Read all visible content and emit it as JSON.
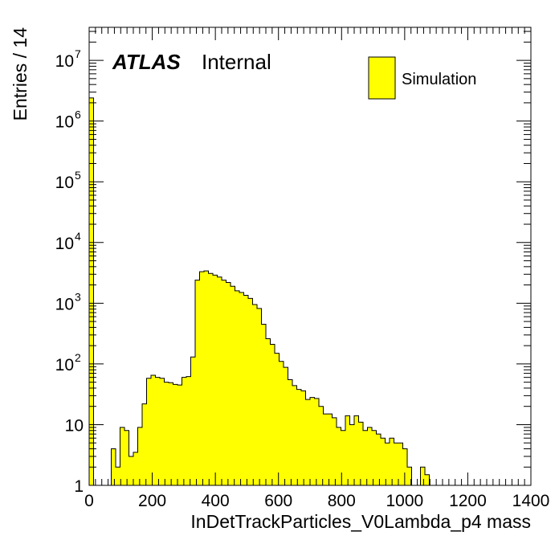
{
  "chart_data": {
    "type": "bar",
    "subtype": "histogram",
    "xlabel": "InDetTrackParticles_V0Lambda_p4 mass",
    "ylabel": "Entries / 14",
    "xlim": [
      0,
      1400
    ],
    "ylim": [
      1,
      35000000
    ],
    "y_scale": "log",
    "bin_width": 14,
    "fill_color": "#ffff00",
    "line_color": "#000000",
    "x_ticks": [
      "0",
      "200",
      "400",
      "600",
      "800",
      "1000",
      "1200",
      "1400"
    ],
    "y_ticks": [
      {
        "base": "1",
        "exp": ""
      },
      {
        "base": "10",
        "exp": ""
      },
      {
        "base": "10",
        "exp": "2"
      },
      {
        "base": "10",
        "exp": "3"
      },
      {
        "base": "10",
        "exp": "4"
      },
      {
        "base": "10",
        "exp": "5"
      },
      {
        "base": "10",
        "exp": "6"
      },
      {
        "base": "10",
        "exp": "7"
      }
    ],
    "label_atlas": "ATLAS",
    "label_internal": "Internal",
    "legend": [
      {
        "name": "Simulation",
        "color": "#ffff00"
      }
    ],
    "legend_position": "top-right",
    "bins": [
      [
        0,
        2400000
      ],
      [
        14,
        1
      ],
      [
        28,
        1
      ],
      [
        42,
        1
      ],
      [
        56,
        0
      ],
      [
        70,
        4
      ],
      [
        84,
        2
      ],
      [
        98,
        9
      ],
      [
        112,
        8
      ],
      [
        126,
        3
      ],
      [
        140,
        3.5
      ],
      [
        154,
        9
      ],
      [
        168,
        22
      ],
      [
        182,
        58
      ],
      [
        196,
        65
      ],
      [
        210,
        60
      ],
      [
        224,
        58
      ],
      [
        238,
        50
      ],
      [
        252,
        49
      ],
      [
        266,
        46
      ],
      [
        280,
        45
      ],
      [
        294,
        60
      ],
      [
        308,
        62
      ],
      [
        322,
        130
      ],
      [
        336,
        2400
      ],
      [
        350,
        3300
      ],
      [
        364,
        3400
      ],
      [
        378,
        3100
      ],
      [
        392,
        2900
      ],
      [
        406,
        2700
      ],
      [
        420,
        2400
      ],
      [
        434,
        2200
      ],
      [
        448,
        1900
      ],
      [
        462,
        1600
      ],
      [
        476,
        1500
      ],
      [
        490,
        1350
      ],
      [
        504,
        1200
      ],
      [
        518,
        950
      ],
      [
        532,
        820
      ],
      [
        546,
        450
      ],
      [
        560,
        260
      ],
      [
        574,
        210
      ],
      [
        588,
        150
      ],
      [
        602,
        110
      ],
      [
        616,
        88
      ],
      [
        630,
        55
      ],
      [
        644,
        44
      ],
      [
        658,
        38
      ],
      [
        672,
        36
      ],
      [
        686,
        26
      ],
      [
        700,
        28
      ],
      [
        714,
        27
      ],
      [
        728,
        20
      ],
      [
        742,
        15
      ],
      [
        756,
        15
      ],
      [
        770,
        13
      ],
      [
        784,
        9
      ],
      [
        798,
        8
      ],
      [
        812,
        14
      ],
      [
        826,
        10
      ],
      [
        840,
        14
      ],
      [
        854,
        11
      ],
      [
        868,
        8
      ],
      [
        882,
        9
      ],
      [
        896,
        8
      ],
      [
        910,
        7
      ],
      [
        924,
        6
      ],
      [
        938,
        5
      ],
      [
        952,
        6
      ],
      [
        966,
        5
      ],
      [
        980,
        5
      ],
      [
        994,
        4
      ],
      [
        1008,
        2
      ],
      [
        1022,
        0
      ],
      [
        1036,
        1
      ],
      [
        1050,
        2
      ],
      [
        1064,
        1.5
      ],
      [
        1078,
        0
      ],
      [
        1092,
        0
      ],
      [
        1106,
        0
      ],
      [
        1120,
        0
      ],
      [
        1134,
        0
      ],
      [
        1148,
        1
      ],
      [
        1162,
        1
      ],
      [
        1176,
        0
      ],
      [
        1190,
        0
      ],
      [
        1204,
        0
      ],
      [
        1218,
        0
      ],
      [
        1232,
        0
      ],
      [
        1246,
        0
      ],
      [
        1260,
        0
      ],
      [
        1274,
        0
      ],
      [
        1288,
        0
      ],
      [
        1302,
        0
      ],
      [
        1316,
        0
      ],
      [
        1330,
        0
      ],
      [
        1344,
        0
      ],
      [
        1358,
        0
      ],
      [
        1372,
        0
      ],
      [
        1386,
        0
      ]
    ]
  }
}
